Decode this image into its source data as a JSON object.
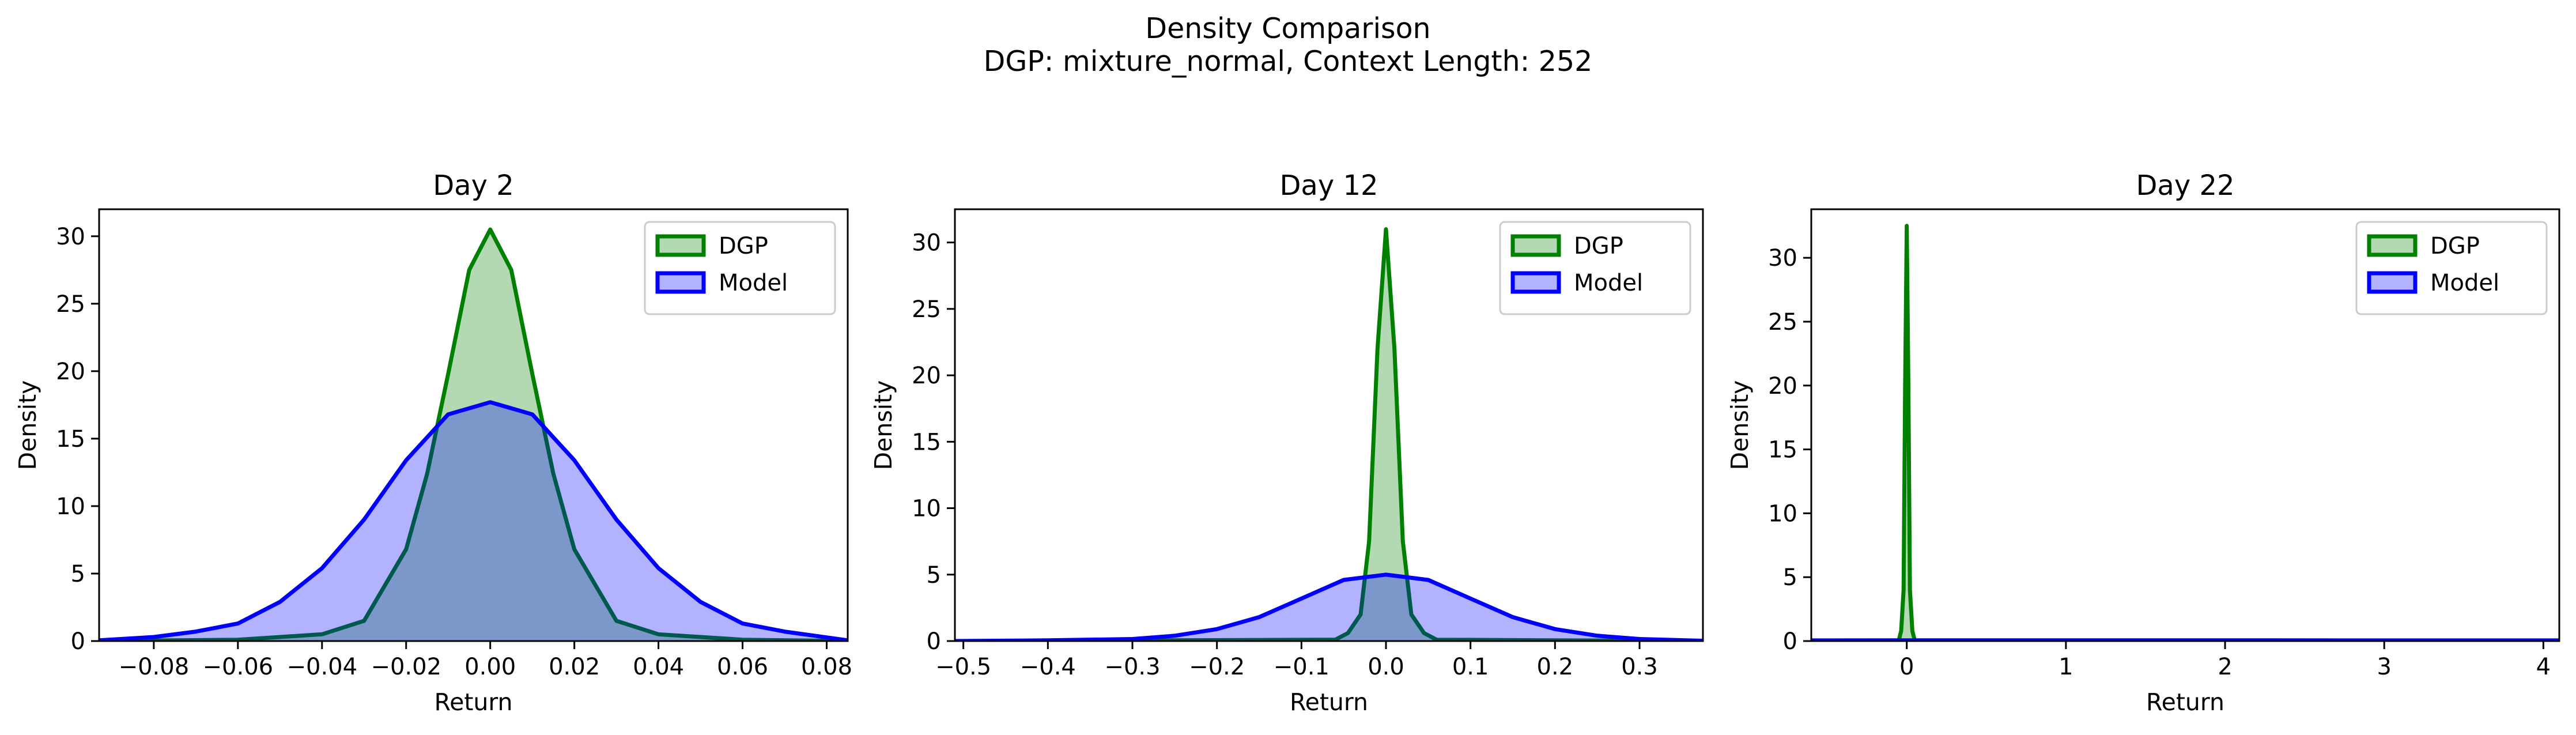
{
  "figure": {
    "title": "Density Comparison",
    "subtitle": "DGP: mixture_normal, Context Length: 252"
  },
  "legend": {
    "items": [
      {
        "label": "DGP",
        "color": "#008000"
      },
      {
        "label": "Model",
        "color": "#0000ff"
      }
    ],
    "placement": "upper right"
  },
  "chart_data": [
    {
      "type": "area",
      "title": "Day 2",
      "xlabel": "Return",
      "ylabel": "Density",
      "xlim": [
        -0.093,
        0.085
      ],
      "ylim": [
        0,
        32
      ],
      "xticks": [
        -0.08,
        -0.06,
        -0.04,
        -0.02,
        0.0,
        0.02,
        0.04,
        0.06,
        0.08
      ],
      "xtick_labels": [
        "−0.08",
        "−0.06",
        "−0.04",
        "−0.02",
        "0.00",
        "0.02",
        "0.04",
        "0.06",
        "0.08"
      ],
      "yticks": [
        0,
        5,
        10,
        15,
        20,
        25,
        30
      ],
      "ytick_labels": [
        "0",
        "5",
        "10",
        "15",
        "20",
        "25",
        "30"
      ],
      "grid": false,
      "series": [
        {
          "name": "DGP",
          "color": "#008000",
          "x": [
            -0.093,
            -0.06,
            -0.04,
            -0.03,
            -0.02,
            -0.015,
            -0.01,
            -0.005,
            0.0,
            0.005,
            0.01,
            0.015,
            0.02,
            0.03,
            0.04,
            0.06,
            0.085
          ],
          "y": [
            0.0,
            0.1,
            0.5,
            1.5,
            6.8,
            12.4,
            19.8,
            27.5,
            30.5,
            27.5,
            19.8,
            12.4,
            6.8,
            1.5,
            0.5,
            0.1,
            0.0
          ]
        },
        {
          "name": "Model",
          "color": "#0000ff",
          "x": [
            -0.093,
            -0.08,
            -0.07,
            -0.06,
            -0.05,
            -0.04,
            -0.03,
            -0.02,
            -0.01,
            0.0,
            0.01,
            0.02,
            0.03,
            0.04,
            0.05,
            0.06,
            0.07,
            0.085
          ],
          "y": [
            0.05,
            0.3,
            0.7,
            1.3,
            2.9,
            5.4,
            9.0,
            13.4,
            16.8,
            17.7,
            16.8,
            13.4,
            9.0,
            5.4,
            2.9,
            1.3,
            0.7,
            0.05
          ]
        }
      ]
    },
    {
      "type": "area",
      "title": "Day 12",
      "xlabel": "Return",
      "ylabel": "Density",
      "xlim": [
        -0.51,
        0.375
      ],
      "ylim": [
        0,
        32.5
      ],
      "xticks": [
        -0.5,
        -0.4,
        -0.3,
        -0.2,
        -0.1,
        0.0,
        0.1,
        0.2,
        0.3
      ],
      "xtick_labels": [
        "−0.5",
        "−0.4",
        "−0.3",
        "−0.2",
        "−0.1",
        "0.0",
        "0.1",
        "0.2",
        "0.3"
      ],
      "yticks": [
        0,
        5,
        10,
        15,
        20,
        25,
        30
      ],
      "ytick_labels": [
        "0",
        "5",
        "10",
        "15",
        "20",
        "25",
        "30"
      ],
      "grid": false,
      "series": [
        {
          "name": "DGP",
          "color": "#008000",
          "x": [
            -0.51,
            -0.06,
            -0.045,
            -0.03,
            -0.02,
            -0.01,
            0.0,
            0.01,
            0.02,
            0.03,
            0.045,
            0.06,
            0.375
          ],
          "y": [
            0.0,
            0.1,
            0.6,
            2.0,
            7.5,
            22.0,
            31.0,
            22.0,
            7.5,
            2.0,
            0.6,
            0.1,
            0.0
          ]
        },
        {
          "name": "Model",
          "color": "#0000ff",
          "x": [
            -0.51,
            -0.4,
            -0.3,
            -0.25,
            -0.2,
            -0.15,
            -0.1,
            -0.05,
            0.0,
            0.05,
            0.1,
            0.15,
            0.2,
            0.25,
            0.3,
            0.375
          ],
          "y": [
            0.0,
            0.05,
            0.15,
            0.4,
            0.9,
            1.8,
            3.2,
            4.6,
            5.0,
            4.6,
            3.2,
            1.8,
            0.9,
            0.4,
            0.15,
            0.02
          ]
        }
      ]
    },
    {
      "type": "area",
      "title": "Day 22",
      "xlabel": "Return",
      "ylabel": "Density",
      "xlim": [
        -0.6,
        4.1
      ],
      "ylim": [
        0,
        33.8
      ],
      "xticks": [
        0,
        1,
        2,
        3,
        4
      ],
      "xtick_labels": [
        "0",
        "1",
        "2",
        "3",
        "4"
      ],
      "yticks": [
        0,
        5,
        10,
        15,
        20,
        25,
        30
      ],
      "ytick_labels": [
        "0",
        "5",
        "10",
        "15",
        "20",
        "25",
        "30"
      ],
      "grid": false,
      "series": [
        {
          "name": "DGP",
          "color": "#008000",
          "x": [
            -0.6,
            -0.05,
            -0.035,
            -0.02,
            -0.01,
            0.0,
            0.01,
            0.02,
            0.035,
            0.05,
            4.1
          ],
          "y": [
            0.0,
            0.05,
            0.8,
            4.0,
            20.0,
            32.5,
            20.0,
            4.0,
            0.8,
            0.05,
            0.0
          ]
        },
        {
          "name": "Model",
          "color": "#0000ff",
          "x": [
            -0.6,
            0.0,
            1.0,
            2.0,
            3.0,
            4.1
          ],
          "y": [
            0.05,
            0.06,
            0.06,
            0.06,
            0.05,
            0.05
          ]
        }
      ]
    }
  ]
}
